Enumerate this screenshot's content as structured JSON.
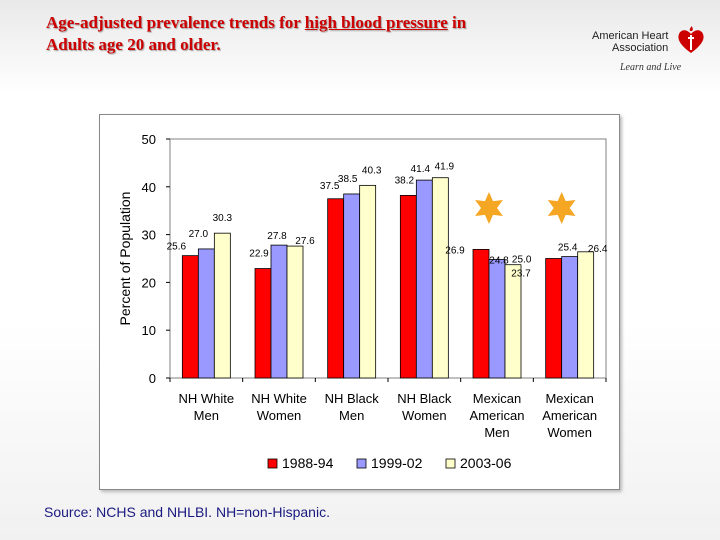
{
  "slide": {
    "title_part1": "Age-adjusted prevalence trends for ",
    "title_highlight": "high blood pressure",
    "title_part2": " in",
    "title_line2": "Adults age 20 and older.",
    "source": "Source: NCHS and NHLBI.  NH=non-Hispanic."
  },
  "logo": {
    "line1": "American Heart",
    "line2": "Association",
    "tagline": "Learn and Live",
    "color": "#cc0000"
  },
  "chart_data": {
    "type": "bar",
    "ylabel": "Percent of Population",
    "ylim": [
      0,
      50
    ],
    "yticks": [
      0,
      10,
      20,
      30,
      40,
      50
    ],
    "categories": [
      [
        "NH White",
        "Men"
      ],
      [
        "NH White",
        "Women"
      ],
      [
        "NH Black",
        "Men"
      ],
      [
        "NH Black",
        "Women"
      ],
      [
        "Mexican",
        "American",
        "Men"
      ],
      [
        "Mexican",
        "American",
        "Women"
      ]
    ],
    "series": [
      {
        "name": "1988-94",
        "color": "#ff0000",
        "values": [
          25.6,
          22.9,
          37.5,
          38.2,
          26.9,
          25.0
        ]
      },
      {
        "name": "1999-02",
        "color": "#9999ff",
        "values": [
          27.0,
          27.8,
          38.5,
          41.4,
          24.8,
          25.4
        ]
      },
      {
        "name": "2003-06",
        "color": "#ffffcc",
        "values": [
          30.3,
          27.6,
          40.3,
          41.9,
          23.7,
          26.4
        ]
      }
    ],
    "data_labels": [
      [
        "25.6",
        "27.0",
        "30.3"
      ],
      [
        "22.9",
        "27.8",
        "27.6"
      ],
      [
        "37.5",
        "38.5",
        "40.3"
      ],
      [
        "38.2",
        "41.4",
        "41.9"
      ],
      [
        "26.9",
        "24.8",
        "23.7"
      ],
      [
        "25.0",
        "25.4",
        "26.4"
      ]
    ],
    "legend_position": "bottom",
    "grid": false,
    "annotation_color": "#f5a623"
  }
}
